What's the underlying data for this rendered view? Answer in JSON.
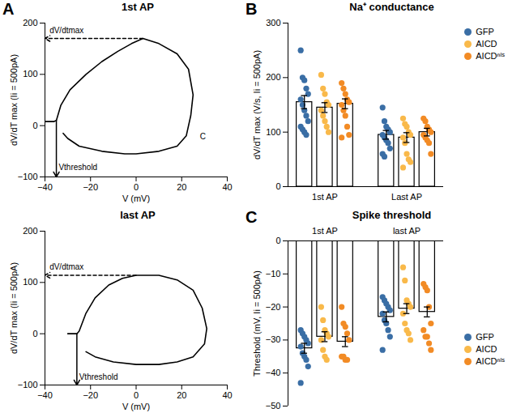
{
  "chart_data": [
    {
      "type": "line",
      "panel": "A",
      "title": "1st AP",
      "x_label": "V (mV)",
      "y_label": "dV/dT max (Ii = 500pA)",
      "color": "#000000",
      "x": [
        -40,
        -36,
        -35,
        -33,
        -29,
        -22,
        -15,
        -8,
        -2,
        3,
        10,
        18,
        23,
        25,
        24,
        22,
        18,
        10,
        0,
        -5,
        -15,
        -25,
        -30,
        -32
      ],
      "values": [
        8,
        8,
        10,
        40,
        70,
        100,
        125,
        145,
        160,
        170,
        160,
        140,
        110,
        60,
        20,
        -20,
        -40,
        -50,
        -55,
        -55,
        -50,
        -40,
        -25,
        -15
      ],
      "threshold": {
        "x": -35,
        "y": 10
      },
      "annotations": [
        {
          "text": "dV/dtmax",
          "x": -38,
          "y": 185
        },
        {
          "text": "Vthreshold",
          "x": -34,
          "y": -82
        },
        {
          "text": "C",
          "x": 28,
          "y": -22
        }
      ],
      "xlim": [
        -40,
        40
      ],
      "xticks": [
        -40,
        -20,
        0,
        20,
        40
      ],
      "ylim": [
        -100,
        200
      ],
      "yticks": [
        -100,
        0,
        100,
        200
      ]
    },
    {
      "type": "line",
      "title": "last AP",
      "x_label": "V (mV)",
      "y_label": "dV/dT max (Ii = 500pA)",
      "color": "#000000",
      "x": [
        -30,
        -26,
        -25,
        -22,
        -18,
        -12,
        -6,
        0,
        10,
        18,
        25,
        29,
        31,
        30,
        25,
        18,
        10,
        0,
        -10,
        -18,
        -22
      ],
      "values": [
        0,
        0,
        5,
        40,
        70,
        95,
        108,
        114,
        114,
        105,
        85,
        50,
        10,
        -20,
        -45,
        -55,
        -60,
        -60,
        -55,
        -45,
        -35
      ],
      "threshold": {
        "x": -26,
        "y": 0
      },
      "annotations": [
        {
          "text": "dV/dtmax",
          "x": -38,
          "y": 130
        },
        {
          "text": "Vthreshold",
          "x": -25,
          "y": -85
        }
      ],
      "xlim": [
        -40,
        40
      ],
      "xticks": [
        -40,
        -20,
        0,
        20,
        40
      ],
      "ylim": [
        -100,
        200
      ],
      "yticks": [
        -100,
        0,
        100,
        200
      ]
    },
    {
      "type": "bar",
      "panel": "B",
      "title": "Na⁺ conductance",
      "y_label": "dV/dT max (V/s, Ii = 500pA)",
      "categories": [
        "1st AP",
        "Last AP"
      ],
      "legend": "top right",
      "series": [
        {
          "name": "GFP",
          "color": "#3a6ea5",
          "values": [
            155,
            95
          ],
          "errors": [
            12,
            8
          ],
          "points": [
            [
              250,
              200,
              195,
              180,
              170,
              160,
              150,
              140,
              130,
              120,
              110,
              105,
              100,
              95
            ],
            [
              145,
              120,
              110,
              105,
              100,
              95,
              90,
              85,
              80,
              70,
              60,
              55
            ]
          ]
        },
        {
          "name": "AICD",
          "color": "#f9b94a",
          "values": [
            145,
            90
          ],
          "errors": [
            9,
            9
          ],
          "points": [
            [
              205,
              180,
              170,
              155,
              150,
              140,
              130,
              120,
              110,
              100
            ],
            [
              125,
              115,
              110,
              100,
              95,
              90,
              80,
              60,
              50,
              45,
              35
            ]
          ]
        },
        {
          "name": "AICDⁿˡˢ",
          "color": "#f28b25",
          "values": [
            152,
            100
          ],
          "errors": [
            9,
            7
          ],
          "points": [
            [
              190,
              180,
              170,
              160,
              155,
              150,
              140,
              130,
              110,
              95,
              90
            ],
            [
              125,
              120,
              110,
              105,
              100,
              95,
              90,
              85,
              80,
              60
            ]
          ]
        }
      ],
      "ylim": [
        0,
        300
      ],
      "yticks": [
        0,
        100,
        200,
        300
      ]
    },
    {
      "type": "bar",
      "panel": "C",
      "title": "Spike threshold",
      "y_label": "Threshold (mV, Ii = 500pA)",
      "categories": [
        "1st AP",
        "last AP"
      ],
      "legend": "bottom right",
      "series": [
        {
          "name": "GFP",
          "color": "#3a6ea5",
          "values": [
            -32.5,
            -23
          ],
          "errors": [
            1.5,
            1.5
          ],
          "points": [
            [
              -27,
              -28,
              -29,
              -30,
              -31,
              -32,
              -34,
              -35,
              -36,
              -38,
              -43
            ],
            [
              -17,
              -18,
              -19,
              -20,
              -21,
              -22,
              -24,
              -25,
              -27,
              -29,
              -33
            ]
          ]
        },
        {
          "name": "AICD",
          "color": "#f9b94a",
          "values": [
            -29,
            -20.5
          ],
          "errors": [
            1.5,
            1.5
          ],
          "points": [
            [
              -20,
              -24,
              -27,
              -28,
              -29,
              -30,
              -33,
              -35,
              -36
            ],
            [
              -8,
              -12,
              -18,
              -19,
              -20,
              -22,
              -25,
              -27,
              -28,
              -30
            ]
          ]
        },
        {
          "name": "AICDⁿˡˢ",
          "color": "#f28b25",
          "values": [
            -30.5,
            -21.5
          ],
          "errors": [
            1.5,
            1.5
          ],
          "points": [
            [
              -20,
              -25,
              -26,
              -28,
              -30,
              -35,
              -35,
              -36,
              -36
            ],
            [
              -13,
              -14,
              -15,
              -20,
              -25,
              -27,
              -29,
              -29,
              -31,
              -33
            ]
          ]
        }
      ],
      "ylim": [
        -50,
        0
      ],
      "yticks": [
        -50,
        -40,
        -30,
        -20,
        -10,
        0
      ]
    }
  ]
}
